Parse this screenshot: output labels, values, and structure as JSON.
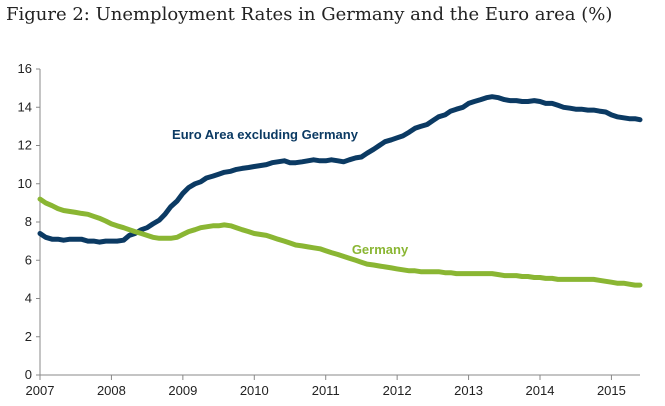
{
  "chart_data": {
    "type": "line",
    "title": "Figure 2: Unemployment Rates in Germany and the Euro area (%)",
    "xlabel": "",
    "ylabel": "",
    "xlim": [
      2007.0,
      2015.4
    ],
    "ylim": [
      0,
      16
    ],
    "y_ticks": [
      0,
      2,
      4,
      6,
      8,
      10,
      12,
      14,
      16
    ],
    "x_ticks": [
      "2007",
      "2008",
      "2009",
      "2010",
      "2011",
      "2012",
      "2013",
      "2014",
      "2015"
    ],
    "grid": false,
    "legend": "inline labels",
    "series": [
      {
        "name": "Euro Area excluding Germany",
        "color": "#0b3a63",
        "points": [
          [
            2007.0,
            7.4
          ],
          [
            2007.08,
            7.2
          ],
          [
            2007.17,
            7.1
          ],
          [
            2007.25,
            7.1
          ],
          [
            2007.33,
            7.05
          ],
          [
            2007.42,
            7.1
          ],
          [
            2007.5,
            7.1
          ],
          [
            2007.58,
            7.1
          ],
          [
            2007.67,
            7.0
          ],
          [
            2007.75,
            7.0
          ],
          [
            2007.83,
            6.95
          ],
          [
            2007.92,
            7.0
          ],
          [
            2008.0,
            7.0
          ],
          [
            2008.08,
            7.0
          ],
          [
            2008.17,
            7.05
          ],
          [
            2008.25,
            7.3
          ],
          [
            2008.33,
            7.4
          ],
          [
            2008.42,
            7.6
          ],
          [
            2008.5,
            7.7
          ],
          [
            2008.58,
            7.9
          ],
          [
            2008.67,
            8.1
          ],
          [
            2008.75,
            8.4
          ],
          [
            2008.83,
            8.8
          ],
          [
            2008.92,
            9.1
          ],
          [
            2009.0,
            9.5
          ],
          [
            2009.08,
            9.8
          ],
          [
            2009.17,
            10.0
          ],
          [
            2009.25,
            10.1
          ],
          [
            2009.33,
            10.3
          ],
          [
            2009.42,
            10.4
          ],
          [
            2009.5,
            10.5
          ],
          [
            2009.58,
            10.6
          ],
          [
            2009.67,
            10.65
          ],
          [
            2009.75,
            10.75
          ],
          [
            2009.83,
            10.8
          ],
          [
            2009.92,
            10.85
          ],
          [
            2010.0,
            10.9
          ],
          [
            2010.08,
            10.95
          ],
          [
            2010.17,
            11.0
          ],
          [
            2010.25,
            11.1
          ],
          [
            2010.33,
            11.15
          ],
          [
            2010.42,
            11.2
          ],
          [
            2010.5,
            11.1
          ],
          [
            2010.58,
            11.1
          ],
          [
            2010.67,
            11.15
          ],
          [
            2010.75,
            11.2
          ],
          [
            2010.83,
            11.25
          ],
          [
            2010.92,
            11.2
          ],
          [
            2011.0,
            11.2
          ],
          [
            2011.08,
            11.25
          ],
          [
            2011.17,
            11.2
          ],
          [
            2011.25,
            11.15
          ],
          [
            2011.33,
            11.25
          ],
          [
            2011.42,
            11.35
          ],
          [
            2011.5,
            11.4
          ],
          [
            2011.58,
            11.6
          ],
          [
            2011.67,
            11.8
          ],
          [
            2011.75,
            12.0
          ],
          [
            2011.83,
            12.2
          ],
          [
            2011.92,
            12.3
          ],
          [
            2012.0,
            12.4
          ],
          [
            2012.08,
            12.5
          ],
          [
            2012.17,
            12.7
          ],
          [
            2012.25,
            12.9
          ],
          [
            2012.33,
            13.0
          ],
          [
            2012.42,
            13.1
          ],
          [
            2012.5,
            13.3
          ],
          [
            2012.58,
            13.5
          ],
          [
            2012.67,
            13.6
          ],
          [
            2012.75,
            13.8
          ],
          [
            2012.83,
            13.9
          ],
          [
            2012.92,
            14.0
          ],
          [
            2013.0,
            14.2
          ],
          [
            2013.08,
            14.3
          ],
          [
            2013.17,
            14.4
          ],
          [
            2013.25,
            14.5
          ],
          [
            2013.33,
            14.55
          ],
          [
            2013.42,
            14.5
          ],
          [
            2013.5,
            14.4
          ],
          [
            2013.58,
            14.35
          ],
          [
            2013.67,
            14.35
          ],
          [
            2013.75,
            14.3
          ],
          [
            2013.83,
            14.3
          ],
          [
            2013.92,
            14.35
          ],
          [
            2014.0,
            14.3
          ],
          [
            2014.08,
            14.2
          ],
          [
            2014.17,
            14.2
          ],
          [
            2014.25,
            14.1
          ],
          [
            2014.33,
            14.0
          ],
          [
            2014.42,
            13.95
          ],
          [
            2014.5,
            13.9
          ],
          [
            2014.58,
            13.9
          ],
          [
            2014.67,
            13.85
          ],
          [
            2014.75,
            13.85
          ],
          [
            2014.83,
            13.8
          ],
          [
            2014.92,
            13.75
          ],
          [
            2015.0,
            13.6
          ],
          [
            2015.08,
            13.5
          ],
          [
            2015.17,
            13.45
          ],
          [
            2015.25,
            13.4
          ],
          [
            2015.33,
            13.4
          ],
          [
            2015.4,
            13.35
          ]
        ]
      },
      {
        "name": "Germany",
        "color": "#8ab633",
        "points": [
          [
            2007.0,
            9.2
          ],
          [
            2007.08,
            9.0
          ],
          [
            2007.17,
            8.85
          ],
          [
            2007.25,
            8.7
          ],
          [
            2007.33,
            8.6
          ],
          [
            2007.42,
            8.55
          ],
          [
            2007.5,
            8.5
          ],
          [
            2007.58,
            8.45
          ],
          [
            2007.67,
            8.4
          ],
          [
            2007.75,
            8.3
          ],
          [
            2007.83,
            8.2
          ],
          [
            2007.92,
            8.05
          ],
          [
            2008.0,
            7.9
          ],
          [
            2008.08,
            7.8
          ],
          [
            2008.17,
            7.7
          ],
          [
            2008.25,
            7.6
          ],
          [
            2008.33,
            7.5
          ],
          [
            2008.42,
            7.4
          ],
          [
            2008.5,
            7.3
          ],
          [
            2008.58,
            7.2
          ],
          [
            2008.67,
            7.15
          ],
          [
            2008.75,
            7.15
          ],
          [
            2008.83,
            7.15
          ],
          [
            2008.92,
            7.2
          ],
          [
            2009.0,
            7.35
          ],
          [
            2009.08,
            7.5
          ],
          [
            2009.17,
            7.6
          ],
          [
            2009.25,
            7.7
          ],
          [
            2009.33,
            7.75
          ],
          [
            2009.42,
            7.8
          ],
          [
            2009.5,
            7.8
          ],
          [
            2009.58,
            7.85
          ],
          [
            2009.67,
            7.8
          ],
          [
            2009.75,
            7.7
          ],
          [
            2009.83,
            7.6
          ],
          [
            2009.92,
            7.5
          ],
          [
            2010.0,
            7.4
          ],
          [
            2010.08,
            7.35
          ],
          [
            2010.17,
            7.3
          ],
          [
            2010.25,
            7.2
          ],
          [
            2010.33,
            7.1
          ],
          [
            2010.42,
            7.0
          ],
          [
            2010.5,
            6.9
          ],
          [
            2010.58,
            6.8
          ],
          [
            2010.67,
            6.75
          ],
          [
            2010.75,
            6.7
          ],
          [
            2010.83,
            6.65
          ],
          [
            2010.92,
            6.6
          ],
          [
            2011.0,
            6.5
          ],
          [
            2011.08,
            6.4
          ],
          [
            2011.17,
            6.3
          ],
          [
            2011.25,
            6.2
          ],
          [
            2011.33,
            6.1
          ],
          [
            2011.42,
            6.0
          ],
          [
            2011.5,
            5.9
          ],
          [
            2011.58,
            5.8
          ],
          [
            2011.67,
            5.75
          ],
          [
            2011.75,
            5.7
          ],
          [
            2011.83,
            5.65
          ],
          [
            2011.92,
            5.6
          ],
          [
            2012.0,
            5.55
          ],
          [
            2012.08,
            5.5
          ],
          [
            2012.17,
            5.45
          ],
          [
            2012.25,
            5.45
          ],
          [
            2012.33,
            5.4
          ],
          [
            2012.42,
            5.4
          ],
          [
            2012.5,
            5.4
          ],
          [
            2012.58,
            5.4
          ],
          [
            2012.67,
            5.35
          ],
          [
            2012.75,
            5.35
          ],
          [
            2012.83,
            5.3
          ],
          [
            2012.92,
            5.3
          ],
          [
            2013.0,
            5.3
          ],
          [
            2013.08,
            5.3
          ],
          [
            2013.17,
            5.3
          ],
          [
            2013.25,
            5.3
          ],
          [
            2013.33,
            5.3
          ],
          [
            2013.42,
            5.25
          ],
          [
            2013.5,
            5.2
          ],
          [
            2013.58,
            5.2
          ],
          [
            2013.67,
            5.2
          ],
          [
            2013.75,
            5.15
          ],
          [
            2013.83,
            5.15
          ],
          [
            2013.92,
            5.1
          ],
          [
            2014.0,
            5.1
          ],
          [
            2014.08,
            5.05
          ],
          [
            2014.17,
            5.05
          ],
          [
            2014.25,
            5.0
          ],
          [
            2014.33,
            5.0
          ],
          [
            2014.42,
            5.0
          ],
          [
            2014.5,
            5.0
          ],
          [
            2014.58,
            5.0
          ],
          [
            2014.67,
            5.0
          ],
          [
            2014.75,
            5.0
          ],
          [
            2014.83,
            4.95
          ],
          [
            2014.92,
            4.9
          ],
          [
            2015.0,
            4.85
          ],
          [
            2015.08,
            4.8
          ],
          [
            2015.17,
            4.8
          ],
          [
            2015.25,
            4.75
          ],
          [
            2015.33,
            4.7
          ],
          [
            2015.4,
            4.7
          ]
        ]
      }
    ]
  }
}
